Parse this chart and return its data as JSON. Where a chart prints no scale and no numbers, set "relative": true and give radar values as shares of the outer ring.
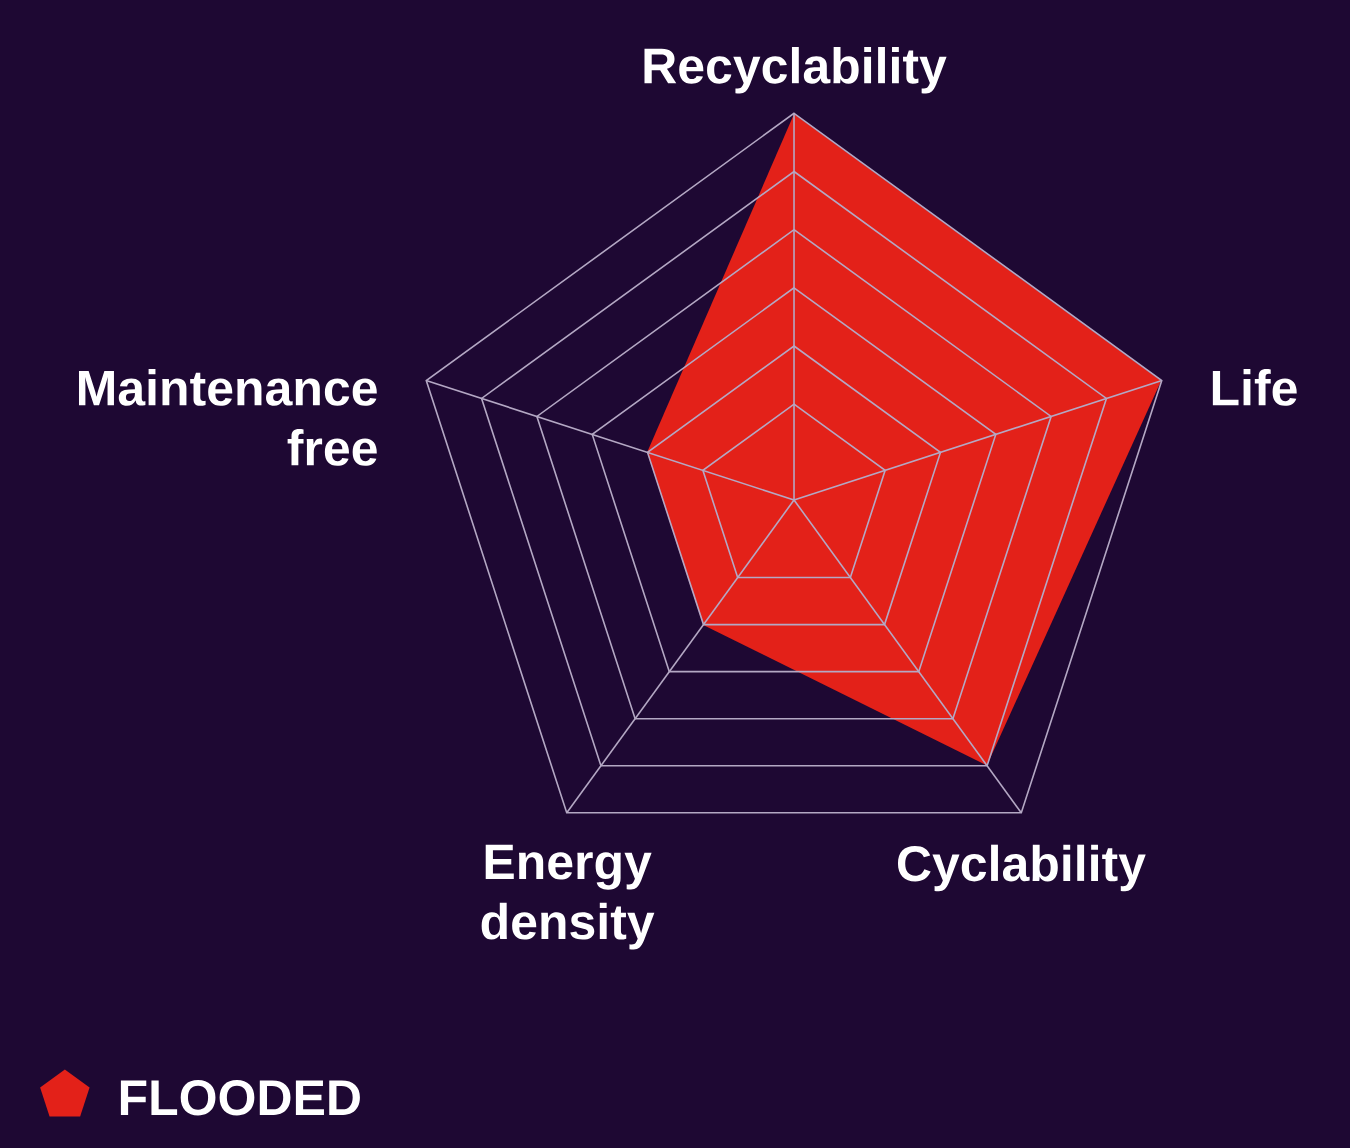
{
  "chart_data": {
    "type": "radar",
    "relative": true,
    "categories": [
      "Recyclability",
      "Life",
      "Cyclability",
      "Energy density",
      "Maintenance free"
    ],
    "series": [
      {
        "name": "FLOODED",
        "color": "#e32119",
        "values": [
          1,
          1,
          0.85,
          0.4,
          0.4
        ]
      }
    ],
    "grid": true,
    "legend": "bottom left"
  }
}
